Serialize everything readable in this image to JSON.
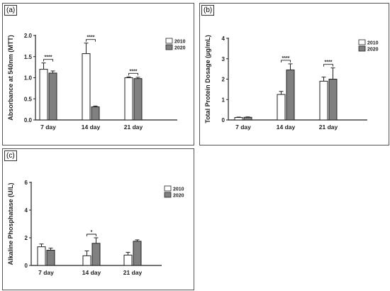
{
  "colors": {
    "series_2010": "#ffffff",
    "series_2020": "#808080",
    "stroke": "#222222"
  },
  "chart_data": [
    {
      "panel": "(a)",
      "type": "bar",
      "ylabel": "Absorbance at 540nm (MTT)",
      "categories": [
        "7 day",
        "14 day",
        "21 day"
      ],
      "ylim": [
        0,
        2.0
      ],
      "yticks": [
        "0.0",
        "0.5",
        "1.0",
        "1.5",
        "2.0"
      ],
      "series": [
        {
          "name": "2010",
          "values": [
            1.2,
            1.57,
            1.0
          ],
          "errors": [
            0.15,
            0.25,
            0.02
          ]
        },
        {
          "name": "2020",
          "values": [
            1.11,
            0.31,
            0.98
          ],
          "errors": [
            0.05,
            0.02,
            0.03
          ]
        }
      ],
      "significance": [
        "****",
        "****",
        "****"
      ],
      "legend": "top-right"
    },
    {
      "panel": "(b)",
      "type": "bar",
      "ylabel": "Total Protein Dosage (µg/mL)",
      "categories": [
        "7 day",
        "14 day",
        "21 day"
      ],
      "ylim": [
        0,
        4
      ],
      "yticks": [
        "0",
        "1",
        "2",
        "3",
        "4"
      ],
      "series": [
        {
          "name": "2010",
          "values": [
            0.12,
            1.25,
            1.9
          ],
          "errors": [
            0.02,
            0.15,
            0.2
          ]
        },
        {
          "name": "2020",
          "values": [
            0.13,
            2.45,
            2.0
          ],
          "errors": [
            0.02,
            0.3,
            0.55
          ]
        }
      ],
      "significance": [
        "",
        "****",
        "****"
      ],
      "legend": "top-right"
    },
    {
      "panel": "(c)",
      "type": "bar",
      "ylabel": "Alkaline Phosphatase (U/L)",
      "categories": [
        "7 day",
        "14 day",
        "21 day"
      ],
      "ylim": [
        0,
        6
      ],
      "yticks": [
        "0",
        "2",
        "4",
        "6"
      ],
      "series": [
        {
          "name": "2010",
          "values": [
            1.35,
            0.7,
            0.75
          ],
          "errors": [
            0.2,
            0.35,
            0.2
          ]
        },
        {
          "name": "2020",
          "values": [
            1.1,
            1.6,
            1.75
          ],
          "errors": [
            0.15,
            0.4,
            0.1
          ]
        }
      ],
      "significance": [
        "",
        "*",
        ""
      ],
      "legend": "top-right"
    }
  ]
}
